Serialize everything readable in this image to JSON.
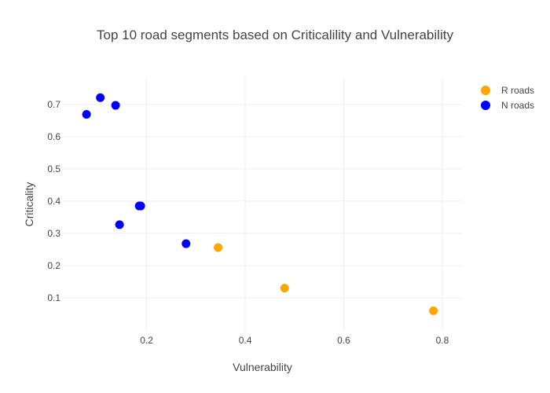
{
  "chart_data": {
    "type": "scatter",
    "title": "Top 10 road segments based on Criticalility and Vulnerability",
    "xlabel": "Vulnerability",
    "ylabel": "Criticality",
    "xlim": [
      0.03,
      0.84
    ],
    "ylim": [
      0.0,
      0.78
    ],
    "xticks": [
      0.2,
      0.4,
      0.6,
      0.8
    ],
    "yticks": [
      0.1,
      0.2,
      0.3,
      0.4,
      0.5,
      0.6,
      0.7
    ],
    "grid": true,
    "legend_position": "top-right",
    "series": [
      {
        "name": "R roads",
        "color": "#FFA500",
        "points": [
          {
            "x": 0.345,
            "y": 0.256
          },
          {
            "x": 0.48,
            "y": 0.13
          },
          {
            "x": 0.782,
            "y": 0.06
          }
        ]
      },
      {
        "name": "N roads",
        "color": "#0000FF",
        "points": [
          {
            "x": 0.078,
            "y": 0.669
          },
          {
            "x": 0.106,
            "y": 0.721
          },
          {
            "x": 0.137,
            "y": 0.697
          },
          {
            "x": 0.185,
            "y": 0.385
          },
          {
            "x": 0.188,
            "y": 0.385
          },
          {
            "x": 0.145,
            "y": 0.327
          },
          {
            "x": 0.28,
            "y": 0.268
          }
        ]
      }
    ]
  }
}
